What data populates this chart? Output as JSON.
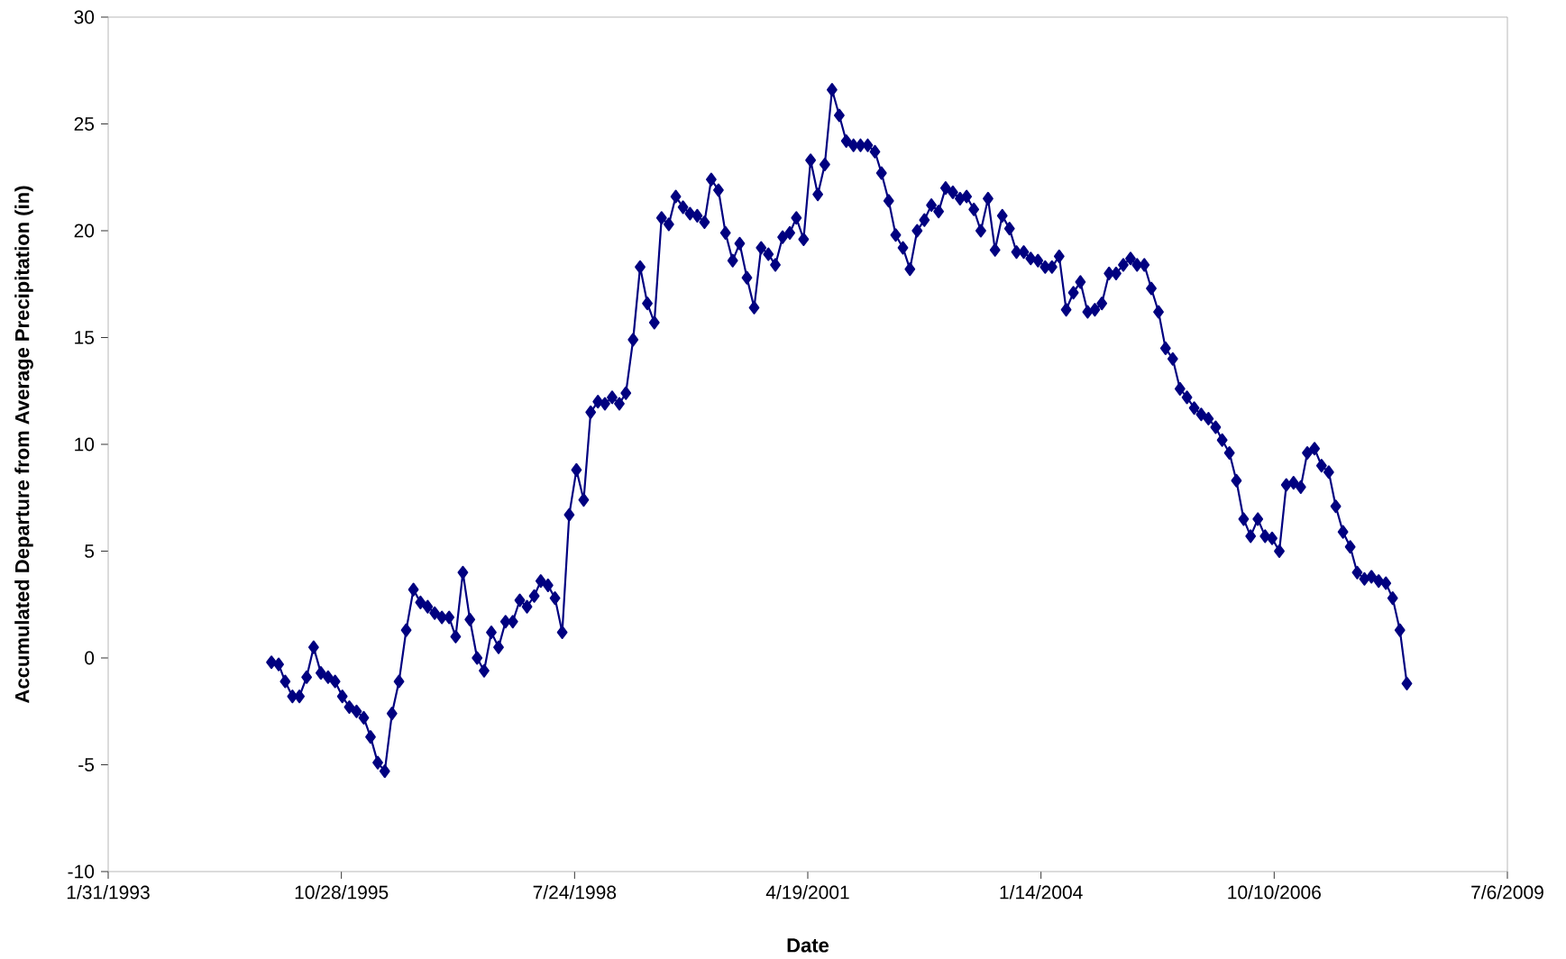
{
  "chart_data": {
    "type": "line",
    "xlabel": "Date",
    "ylabel": "Accumulated Departure from Average Precipitation (in)",
    "color": "#000080",
    "marker": "diamond",
    "line_style": "solid",
    "xlim": [
      "1993-01-31",
      "2009-07-06"
    ],
    "xticks": [
      {
        "value": "1993-01-31",
        "label": "1/31/1993"
      },
      {
        "value": "1995-10-28",
        "label": "10/28/1995"
      },
      {
        "value": "1998-07-24",
        "label": "7/24/1998"
      },
      {
        "value": "2001-04-19",
        "label": "4/19/2001"
      },
      {
        "value": "2004-01-14",
        "label": "1/14/2004"
      },
      {
        "value": "2006-10-10",
        "label": "10/10/2006"
      },
      {
        "value": "2009-07-06",
        "label": "7/6/2009"
      }
    ],
    "ylim": [
      -10,
      30
    ],
    "yticks": [
      -10,
      -5,
      0,
      5,
      10,
      15,
      20,
      25,
      30
    ],
    "x": [
      "1995-01",
      "1995-02",
      "1995-03",
      "1995-04",
      "1995-05",
      "1995-06",
      "1995-07",
      "1995-08",
      "1995-09",
      "1995-10",
      "1995-11",
      "1995-12",
      "1996-01",
      "1996-02",
      "1996-03",
      "1996-04",
      "1996-05",
      "1996-06",
      "1996-07",
      "1996-08",
      "1996-09",
      "1996-10",
      "1996-11",
      "1996-12",
      "1997-01",
      "1997-02",
      "1997-03",
      "1997-04",
      "1997-05",
      "1997-06",
      "1997-07",
      "1997-08",
      "1997-09",
      "1997-10",
      "1997-11",
      "1997-12",
      "1998-01",
      "1998-02",
      "1998-03",
      "1998-04",
      "1998-05",
      "1998-06",
      "1998-07",
      "1998-08",
      "1998-09",
      "1998-10",
      "1998-11",
      "1998-12",
      "1999-01",
      "1999-02",
      "1999-03",
      "1999-04",
      "1999-05",
      "1999-06",
      "1999-07",
      "1999-08",
      "1999-09",
      "1999-10",
      "1999-11",
      "1999-12",
      "2000-01",
      "2000-02",
      "2000-03",
      "2000-04",
      "2000-05",
      "2000-06",
      "2000-07",
      "2000-08",
      "2000-09",
      "2000-10",
      "2000-11",
      "2000-12",
      "2001-01",
      "2001-02",
      "2001-03",
      "2001-04",
      "2001-05",
      "2001-06",
      "2001-07",
      "2001-08",
      "2001-09",
      "2001-10",
      "2001-11",
      "2001-12",
      "2002-01",
      "2002-02",
      "2002-03",
      "2002-04",
      "2002-05",
      "2002-06",
      "2002-07",
      "2002-08",
      "2002-09",
      "2002-10",
      "2002-11",
      "2002-12",
      "2003-01",
      "2003-02",
      "2003-03",
      "2003-04",
      "2003-05",
      "2003-06",
      "2003-07",
      "2003-08",
      "2003-09",
      "2003-10",
      "2003-11",
      "2003-12",
      "2004-01",
      "2004-02",
      "2004-03",
      "2004-04",
      "2004-05",
      "2004-06",
      "2004-07",
      "2004-08",
      "2004-09",
      "2004-10",
      "2004-11",
      "2004-12",
      "2005-01",
      "2005-02",
      "2005-03",
      "2005-04",
      "2005-05",
      "2005-06",
      "2005-07",
      "2005-08",
      "2005-09",
      "2005-10",
      "2005-11",
      "2005-12",
      "2006-01",
      "2006-02",
      "2006-03",
      "2006-04",
      "2006-05",
      "2006-06",
      "2006-07",
      "2006-08",
      "2006-09",
      "2006-10",
      "2006-11",
      "2006-12",
      "2007-01",
      "2007-02",
      "2007-03",
      "2007-04",
      "2007-05",
      "2007-06",
      "2007-07",
      "2007-08",
      "2007-09",
      "2007-10",
      "2007-11",
      "2007-12",
      "2008-01",
      "2008-02",
      "2008-03",
      "2008-04",
      "2008-05"
    ],
    "values": [
      -0.2,
      -0.3,
      -1.1,
      -1.8,
      -1.8,
      -0.9,
      0.5,
      -0.7,
      -0.9,
      -1.1,
      -1.8,
      -2.3,
      -2.5,
      -2.8,
      -3.7,
      -4.9,
      -5.3,
      -2.6,
      -1.1,
      1.3,
      3.2,
      2.6,
      2.4,
      2.1,
      1.9,
      1.9,
      1.0,
      4.0,
      1.8,
      0.0,
      -0.6,
      1.2,
      0.5,
      1.7,
      1.7,
      2.7,
      2.4,
      2.9,
      3.6,
      3.4,
      2.8,
      1.2,
      6.7,
      8.8,
      7.4,
      11.5,
      12.0,
      11.9,
      12.2,
      11.9,
      12.4,
      14.9,
      18.3,
      16.6,
      15.7,
      20.6,
      20.3,
      21.6,
      21.1,
      20.8,
      20.7,
      20.4,
      22.4,
      21.9,
      19.9,
      18.6,
      19.4,
      17.8,
      16.4,
      19.2,
      18.9,
      18.4,
      19.7,
      19.9,
      20.6,
      19.6,
      23.3,
      21.7,
      23.1,
      26.6,
      25.4,
      24.2,
      24.0,
      24.0,
      24.0,
      23.7,
      22.7,
      21.4,
      19.8,
      19.2,
      18.2,
      20.0,
      20.5,
      21.2,
      20.9,
      22.0,
      21.8,
      21.5,
      21.6,
      21.0,
      20.0,
      21.5,
      19.1,
      20.7,
      20.1,
      19.0,
      19.0,
      18.7,
      18.6,
      18.3,
      18.3,
      18.8,
      16.3,
      17.1,
      17.6,
      16.2,
      16.3,
      16.6,
      18.0,
      18.0,
      18.4,
      18.7,
      18.4,
      18.4,
      17.3,
      16.2,
      14.5,
      14.0,
      12.6,
      12.2,
      11.7,
      11.4,
      11.2,
      10.8,
      10.2,
      9.6,
      8.3,
      6.5,
      5.7,
      6.5,
      5.7,
      5.6,
      5.0,
      8.1,
      8.2,
      8.0,
      9.6,
      9.8,
      9.0,
      8.7,
      7.1,
      5.9,
      5.2,
      4.0,
      3.7,
      3.8,
      3.6,
      3.5,
      2.8,
      1.3,
      -1.2
    ]
  }
}
